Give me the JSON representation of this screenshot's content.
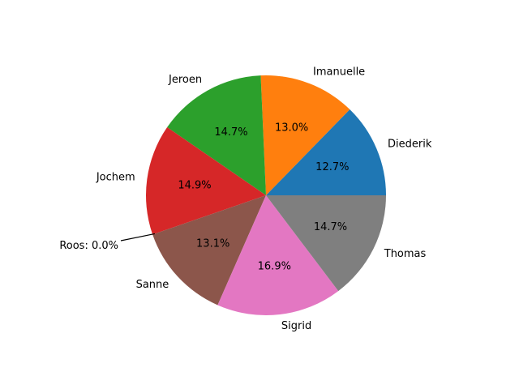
{
  "chart_data": {
    "type": "pie",
    "start_angle": 0,
    "direction": "counterclockwise",
    "slices": [
      {
        "label": "Diederik",
        "value": 12.7,
        "pct_label": "12.7%",
        "color": "#1f77b4"
      },
      {
        "label": "Imanuelle",
        "value": 13.0,
        "pct_label": "13.0%",
        "color": "#ff7f0e"
      },
      {
        "label": "Jeroen",
        "value": 14.7,
        "pct_label": "14.7%",
        "color": "#2ca02c"
      },
      {
        "label": "Jochem",
        "value": 14.9,
        "pct_label": "14.9%",
        "color": "#d62728"
      },
      {
        "label": "Roos",
        "value": 0.0,
        "pct_label": "Roos: 0.0%",
        "color": "#9467bd",
        "callout": true
      },
      {
        "label": "Sanne",
        "value": 13.1,
        "pct_label": "13.1%",
        "color": "#8c564b"
      },
      {
        "label": "Sigrid",
        "value": 16.9,
        "pct_label": "16.9%",
        "color": "#e377c2"
      },
      {
        "label": "Thomas",
        "value": 14.7,
        "pct_label": "14.7%",
        "color": "#7f7f7f"
      }
    ]
  }
}
